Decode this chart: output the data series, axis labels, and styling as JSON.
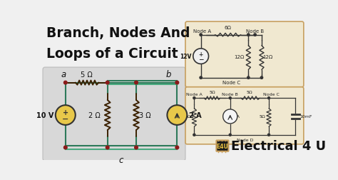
{
  "bg_color": "#f0f0f0",
  "title_lines": [
    "Branch, Nodes And",
    "Loops of a Circuit"
  ],
  "title_color": "#111111",
  "title_fontsize": 13.5,
  "wire_color_dark": "#2d7a5a",
  "wire_color_light": "#4aaa80",
  "node_color": "#8b1a1a",
  "source_fill_yellow": "#e8c84a",
  "source_outline": "#333333",
  "resistor_color_main": "#3a2000",
  "resistor_color_small": "#333333",
  "label_color": "#111111",
  "circuit_bg_left": "#d8d8d8",
  "circuit_bg_right": "#f0e8d0",
  "circuit_border_right": "#c8a060",
  "e4u_chip_bg": "#1a1a1a",
  "e4u_chip_border": "#c8a060",
  "e4u_chip_text": "#e8c040",
  "e4u_text_color": "#111111",
  "e4u_text": "Electrical 4 U"
}
